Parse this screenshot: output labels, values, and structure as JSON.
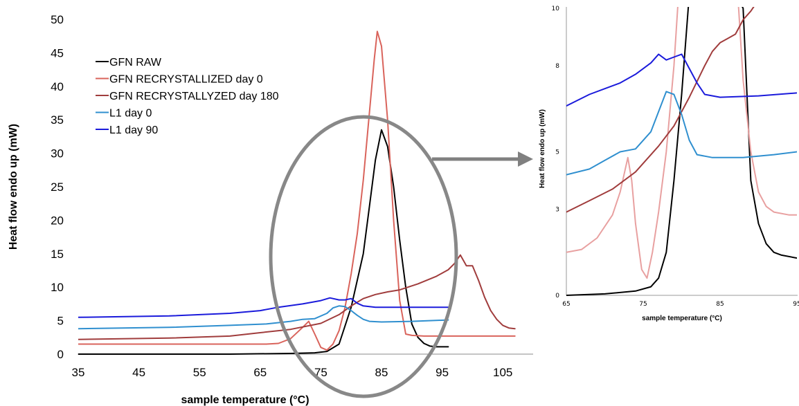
{
  "chart_data": [
    {
      "type": "line",
      "xlabel": "sample temperature (°C)",
      "ylabel": "Heat flow endo up (mW)",
      "xlim": [
        35,
        110
      ],
      "ylim": [
        0,
        50
      ],
      "xticks": [
        "35",
        "45",
        "55",
        "65",
        "75",
        "85",
        "95",
        "105"
      ],
      "yticks": [
        "0",
        "5",
        "10",
        "15",
        "20",
        "25",
        "30",
        "35",
        "40",
        "45",
        "50"
      ],
      "legend_position": "top-left",
      "series": [
        {
          "name": "GFN RAW",
          "color": "#000000",
          "points": [
            [
              35,
              0
            ],
            [
              60,
              0
            ],
            [
              70,
              0.1
            ],
            [
              74,
              0.2
            ],
            [
              76,
              0.4
            ],
            [
              78,
              1.5
            ],
            [
              80,
              7
            ],
            [
              82,
              15
            ],
            [
              83,
              22
            ],
            [
              84,
              29
            ],
            [
              85,
              33.5
            ],
            [
              86,
              31
            ],
            [
              87,
              25
            ],
            [
              88,
              17
            ],
            [
              89,
              10
            ],
            [
              90,
              4.5
            ],
            [
              91,
              2.5
            ],
            [
              92,
              1.6
            ],
            [
              93,
              1.2
            ],
            [
              94,
              1.1
            ],
            [
              96,
              1.1
            ]
          ]
        },
        {
          "name": "GFN RECRYSTALLIZED day 0",
          "color": "#d9635b",
          "points": [
            [
              35,
              1.5
            ],
            [
              66,
              1.5
            ],
            [
              68,
              1.6
            ],
            [
              70,
              2.3
            ],
            [
              72,
              4
            ],
            [
              73,
              4.9
            ],
            [
              74,
              3
            ],
            [
              75,
              1
            ],
            [
              76,
              0.6
            ],
            [
              77,
              1.5
            ],
            [
              78,
              3.5
            ],
            [
              79,
              7
            ],
            [
              80,
              12
            ],
            [
              81,
              18
            ],
            [
              82,
              26
            ],
            [
              83,
              36
            ],
            [
              83.8,
              44
            ],
            [
              84.3,
              48.2
            ],
            [
              85,
              46
            ],
            [
              86,
              35
            ],
            [
              87,
              20
            ],
            [
              88,
              8
            ],
            [
              89,
              3
            ],
            [
              90,
              2.8
            ],
            [
              92,
              2.7
            ],
            [
              96,
              2.7
            ],
            [
              100,
              2.7
            ],
            [
              104,
              2.7
            ],
            [
              107,
              2.7
            ]
          ]
        },
        {
          "name": "GFN RECRYSTALLYZED day 180",
          "color": "#a03c3c",
          "points": [
            [
              35,
              2.2
            ],
            [
              50,
              2.4
            ],
            [
              60,
              2.7
            ],
            [
              65,
              3.2
            ],
            [
              70,
              3.7
            ],
            [
              75,
              4.6
            ],
            [
              78,
              5.9
            ],
            [
              80,
              7.2
            ],
            [
              82,
              8.3
            ],
            [
              84,
              8.9
            ],
            [
              86,
              9.3
            ],
            [
              88,
              9.6
            ],
            [
              91,
              10.5
            ],
            [
              94,
              11.6
            ],
            [
              96,
              12.6
            ],
            [
              97,
              13.5
            ],
            [
              98,
              14.8
            ],
            [
              99,
              13.2
            ],
            [
              100,
              13.2
            ],
            [
              101,
              11
            ],
            [
              102,
              8.5
            ],
            [
              103,
              6.5
            ],
            [
              104,
              5.2
            ],
            [
              105,
              4.3
            ],
            [
              106,
              3.9
            ],
            [
              107,
              3.8
            ]
          ]
        },
        {
          "name": "L1  day 0",
          "color": "#2f8fcf",
          "points": [
            [
              35,
              3.8
            ],
            [
              50,
              4.0
            ],
            [
              60,
              4.3
            ],
            [
              66,
              4.5
            ],
            [
              70,
              4.9
            ],
            [
              72,
              5.2
            ],
            [
              74,
              5.3
            ],
            [
              76,
              6.1
            ],
            [
              77,
              6.9
            ],
            [
              78,
              7.2
            ],
            [
              79,
              7.1
            ],
            [
              80,
              6.5
            ],
            [
              81,
              5.8
            ],
            [
              82,
              5.2
            ],
            [
              83,
              4.9
            ],
            [
              85,
              4.8
            ],
            [
              90,
              4.9
            ],
            [
              96,
              5.1
            ]
          ]
        },
        {
          "name": "L1 day 90",
          "color": "#1a1adb",
          "points": [
            [
              35,
              5.5
            ],
            [
              50,
              5.7
            ],
            [
              60,
              6.1
            ],
            [
              65,
              6.5
            ],
            [
              68,
              7.0
            ],
            [
              72,
              7.5
            ],
            [
              75,
              8.0
            ],
            [
              76.5,
              8.4
            ],
            [
              78,
              8.1
            ],
            [
              79,
              8.1
            ],
            [
              80,
              8.3
            ],
            [
              81,
              7.6
            ],
            [
              82,
              7.2
            ],
            [
              84,
              7.0
            ],
            [
              90,
              7.0
            ],
            [
              96,
              7.0
            ]
          ]
        }
      ]
    },
    {
      "type": "line",
      "xlabel": "sample temperature (°C)",
      "ylabel": "Heat flow endo up (mW)",
      "xlim": [
        65,
        95
      ],
      "ylim": [
        0,
        10
      ],
      "xticks": [
        "65",
        "75",
        "85",
        "95"
      ],
      "yticks": [
        "0",
        "3",
        "5",
        "8",
        "10"
      ],
      "series": [
        {
          "name": "GFN RAW",
          "color": "#000000",
          "points": [
            [
              65,
              0
            ],
            [
              70,
              0.05
            ],
            [
              74,
              0.15
            ],
            [
              76,
              0.3
            ],
            [
              77,
              0.6
            ],
            [
              78,
              1.5
            ],
            [
              79,
              4
            ],
            [
              80,
              7
            ],
            [
              81,
              10.5
            ],
            [
              87,
              10.5
            ],
            [
              88,
              10
            ],
            [
              89,
              4
            ],
            [
              90,
              2.5
            ],
            [
              91,
              1.8
            ],
            [
              92,
              1.5
            ],
            [
              93,
              1.4
            ],
            [
              95,
              1.3
            ]
          ]
        },
        {
          "name": "GFN RECRYSTALLIZED day 0",
          "color": "#e8a0a0",
          "points": [
            [
              65,
              1.5
            ],
            [
              67,
              1.6
            ],
            [
              69,
              2
            ],
            [
              71,
              2.8
            ],
            [
              72,
              3.6
            ],
            [
              73,
              4.8
            ],
            [
              73.5,
              4
            ],
            [
              74,
              2.5
            ],
            [
              74.8,
              0.9
            ],
            [
              75.5,
              0.6
            ],
            [
              76.2,
              1.5
            ],
            [
              77,
              2.9
            ],
            [
              78,
              5
            ],
            [
              79,
              8
            ],
            [
              79.6,
              10.5
            ],
            [
              87.3,
              10.5
            ],
            [
              88,
              7.5
            ],
            [
              89,
              5
            ],
            [
              90,
              3.6
            ],
            [
              91,
              3.1
            ],
            [
              92,
              2.9
            ],
            [
              94,
              2.8
            ],
            [
              95,
              2.8
            ]
          ]
        },
        {
          "name": "GFN RECRYSTALLYZED day 180",
          "color": "#a03c3c",
          "points": [
            [
              65,
              2.9
            ],
            [
              68,
              3.3
            ],
            [
              71,
              3.7
            ],
            [
              74,
              4.3
            ],
            [
              77,
              5.2
            ],
            [
              79,
              5.9
            ],
            [
              81,
              6.9
            ],
            [
              83,
              8.0
            ],
            [
              84,
              8.5
            ],
            [
              85,
              8.8
            ],
            [
              86,
              8.95
            ],
            [
              87,
              9.1
            ],
            [
              88,
              9.6
            ],
            [
              89,
              9.9
            ],
            [
              90,
              10.3
            ]
          ]
        },
        {
          "name": "L1  day 0",
          "color": "#2f8fcf",
          "points": [
            [
              65,
              4.2
            ],
            [
              68,
              4.4
            ],
            [
              70,
              4.7
            ],
            [
              72,
              5.0
            ],
            [
              74,
              5.1
            ],
            [
              76,
              5.7
            ],
            [
              77,
              6.4
            ],
            [
              78,
              7.1
            ],
            [
              79,
              7.0
            ],
            [
              80,
              6.3
            ],
            [
              81,
              5.4
            ],
            [
              82,
              4.9
            ],
            [
              84,
              4.8
            ],
            [
              88,
              4.8
            ],
            [
              92,
              4.9
            ],
            [
              95,
              5.0
            ]
          ]
        },
        {
          "name": "L1 day 90",
          "color": "#1a1adb",
          "points": [
            [
              65,
              6.6
            ],
            [
              68,
              7.0
            ],
            [
              72,
              7.4
            ],
            [
              74,
              7.7
            ],
            [
              76,
              8.1
            ],
            [
              77,
              8.4
            ],
            [
              78,
              8.2
            ],
            [
              79,
              8.3
            ],
            [
              80,
              8.4
            ],
            [
              81,
              7.9
            ],
            [
              82,
              7.4
            ],
            [
              83,
              7.0
            ],
            [
              85,
              6.9
            ],
            [
              90,
              6.95
            ],
            [
              95,
              7.05
            ]
          ]
        }
      ]
    }
  ]
}
